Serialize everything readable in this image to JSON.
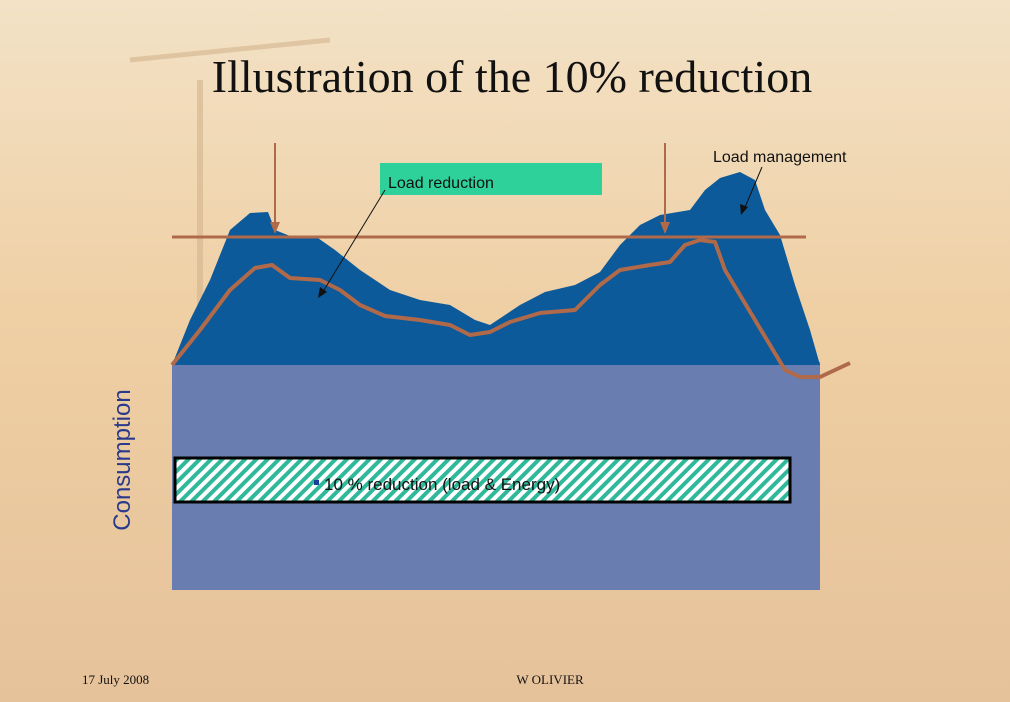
{
  "title": "Illustration of the 10% reduction",
  "labels": {
    "load_reduction": "Load reduction",
    "load_management": "Load management",
    "consumption": "Consumption",
    "reduction_box": "10 % reduction (load & Energy)"
  },
  "footer": {
    "date": "17 July 2008",
    "author": "W OLIVIER"
  }
}
